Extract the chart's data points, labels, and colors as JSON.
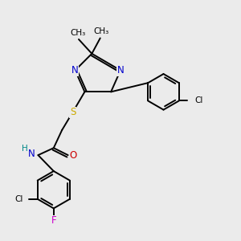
{
  "bg_color": "#ebebeb",
  "atom_colors": {
    "C": "#000000",
    "N": "#0000cc",
    "O": "#cc0000",
    "S": "#ccaa00",
    "Cl": "#000000",
    "F": "#cc00cc",
    "H": "#008888"
  },
  "lw": 1.4,
  "fs_label": 8.5,
  "fs_small": 7.5
}
